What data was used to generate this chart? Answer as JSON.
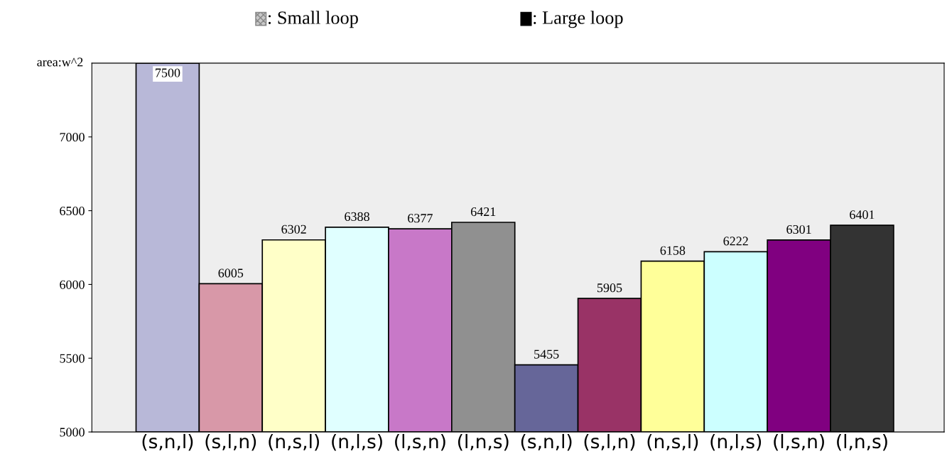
{
  "chart_data": {
    "type": "bar",
    "ylabel": "area:w^2",
    "categories": [
      "(s,n,l)",
      "(s,l,n)",
      "(n,s,l)",
      "(n,l,s)",
      "(l,s,n)",
      "(l,n,s)",
      "(s,n,l)",
      "(s,l,n)",
      "(n,s,l)",
      "(n,l,s)",
      "(l,s,n)",
      "(l,n,s)"
    ],
    "values": [
      7500,
      6005,
      6302,
      6388,
      6377,
      6421,
      5455,
      5905,
      6158,
      6222,
      6301,
      6401
    ],
    "colors": [
      "#b8b8d8",
      "#d898a8",
      "#ffffc8",
      "#e0ffff",
      "#c878c8",
      "#909090",
      "#666699",
      "#993366",
      "#ffff99",
      "#ccffff",
      "#800080",
      "#333333"
    ],
    "annotations": [
      ": Small loop",
      ": Large loop"
    ],
    "ylim": [
      5000,
      7500
    ],
    "yticks": [
      5000,
      5500,
      6000,
      6500,
      7000
    ],
    "data_labels": true,
    "grid": false
  }
}
